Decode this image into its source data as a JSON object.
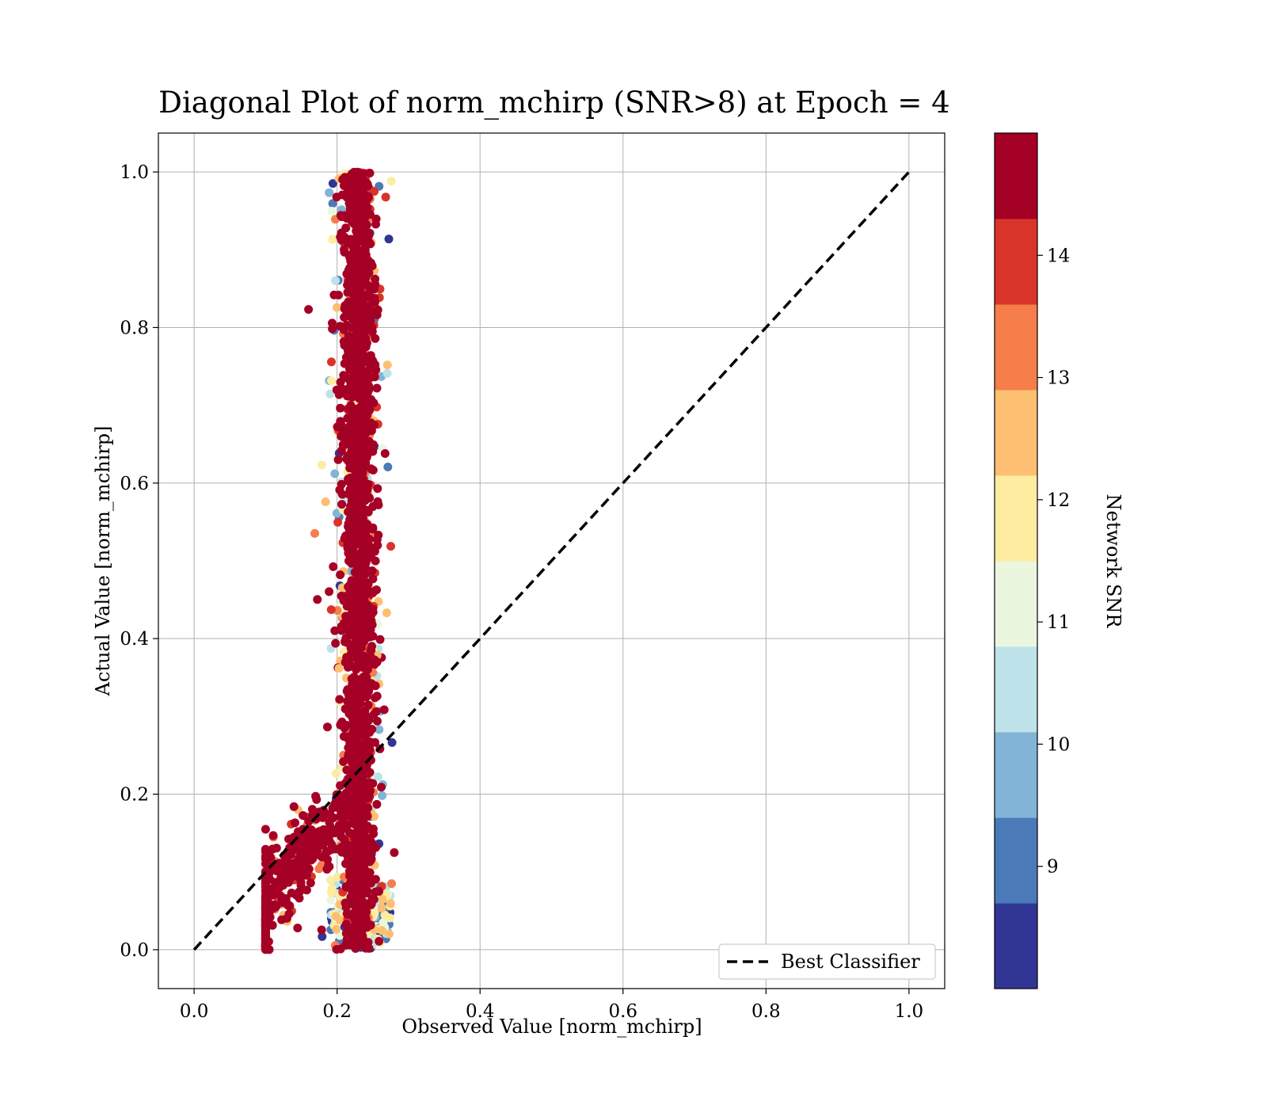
{
  "chart_data": {
    "type": "scatter",
    "title": "Diagonal Plot of norm_mchirp (SNR>8) at Epoch = 4",
    "xlabel": "Observed Value [norm_mchirp]",
    "ylabel": "Actual Value [norm_mchirp]",
    "xlim": [
      -0.05,
      1.05
    ],
    "ylim": [
      -0.05,
      1.05
    ],
    "xticks": [
      "0.0",
      "0.2",
      "0.4",
      "0.6",
      "0.8",
      "1.0"
    ],
    "yticks": [
      "0.0",
      "0.2",
      "0.4",
      "0.6",
      "0.8",
      "1.0"
    ],
    "grid": true,
    "reference_line": {
      "name": "Best Classifier",
      "x": [
        0.0,
        1.0
      ],
      "y": [
        0.0,
        1.0
      ],
      "style": "dashed",
      "color": "#000000"
    },
    "legend": {
      "position": "lower-right",
      "entries": [
        "Best Classifier"
      ]
    },
    "scatter_summary": {
      "x_center": 0.23,
      "x_spread_core": [
        0.2,
        0.27
      ],
      "x_range": [
        0.1,
        0.28
      ],
      "y_range": [
        0.0,
        1.0
      ],
      "low_y_tail": {
        "y_max": 0.2,
        "x_min": 0.1
      }
    },
    "colorbar": {
      "label": "Network SNR",
      "range": [
        8.0,
        15.0
      ],
      "ticks": [
        "9",
        "10",
        "11",
        "12",
        "13",
        "14"
      ],
      "tick_values": [
        9,
        10,
        11,
        12,
        13,
        14
      ],
      "colormap": "RdYlBu_r",
      "bins": [
        {
          "from": 8.0,
          "to": 8.7,
          "color": "#313695"
        },
        {
          "from": 8.7,
          "to": 9.4,
          "color": "#4a7ab7"
        },
        {
          "from": 9.4,
          "to": 10.1,
          "color": "#81b4d6"
        },
        {
          "from": 10.1,
          "to": 10.8,
          "color": "#bde2ea"
        },
        {
          "from": 10.8,
          "to": 11.5,
          "color": "#ebf6df"
        },
        {
          "from": 11.5,
          "to": 12.2,
          "color": "#feeca0"
        },
        {
          "from": 12.2,
          "to": 12.9,
          "color": "#fdbf71"
        },
        {
          "from": 12.9,
          "to": 13.6,
          "color": "#f57e4b"
        },
        {
          "from": 13.6,
          "to": 14.3,
          "color": "#d93429"
        },
        {
          "from": 14.3,
          "to": 15.0,
          "color": "#a50026"
        }
      ]
    }
  }
}
